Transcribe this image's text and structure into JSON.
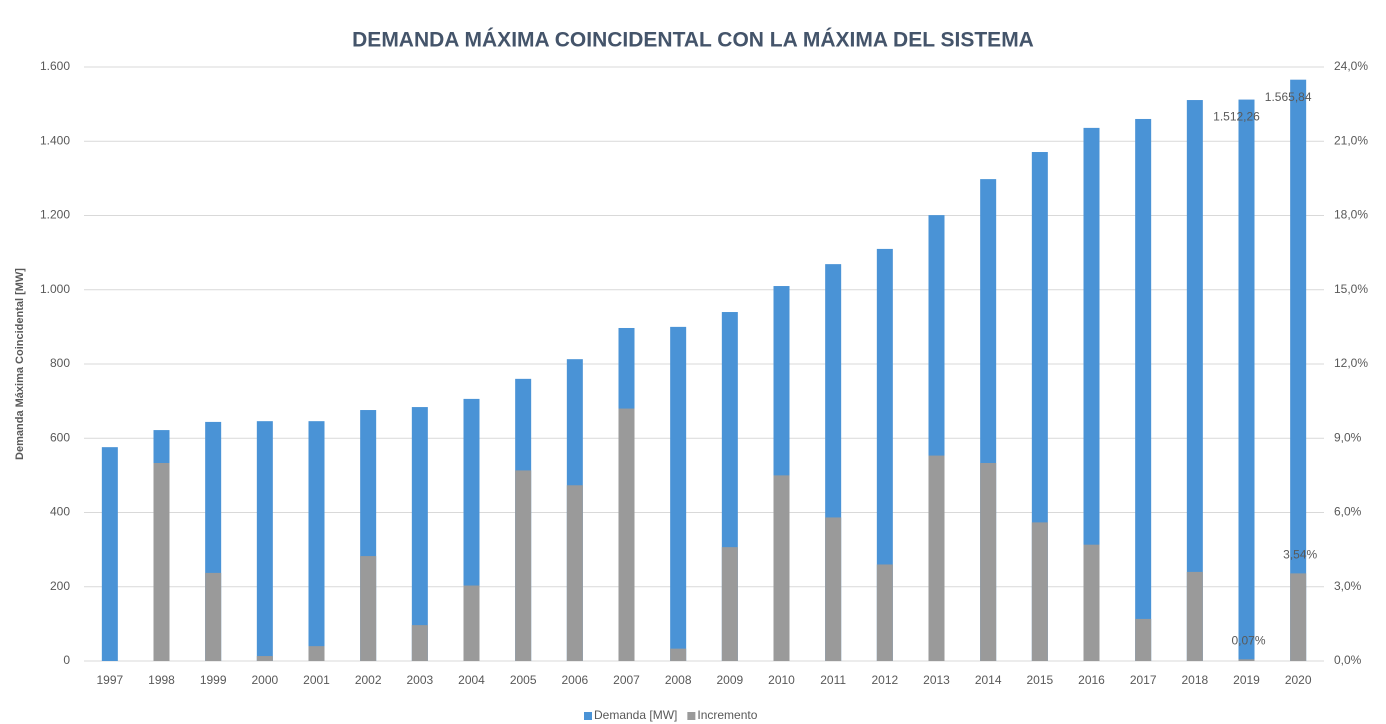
{
  "chart_data": {
    "type": "bar",
    "title": "DEMANDA MÁXIMA COINCIDENTAL CON LA MÁXIMA DEL SISTEMA",
    "y_label": "Demanda Máxima Coincidental [MW]",
    "categories": [
      "1997",
      "1998",
      "1999",
      "2000",
      "2001",
      "2002",
      "2003",
      "2004",
      "2005",
      "2006",
      "2007",
      "2008",
      "2009",
      "2010",
      "2011",
      "2012",
      "2013",
      "2014",
      "2015",
      "2016",
      "2017",
      "2018",
      "2019",
      "2020"
    ],
    "series": [
      {
        "name": "Demanda [MW]",
        "color": "#4a93d6",
        "values": [
          576,
          622,
          644,
          646,
          646,
          676,
          684,
          706,
          760,
          813,
          897,
          900,
          940,
          1010,
          1069,
          1110,
          1201,
          1298,
          1371,
          1436,
          1460,
          1511,
          1512.26,
          1565.84
        ],
        "value_labels": [
          null,
          null,
          null,
          null,
          null,
          null,
          null,
          null,
          null,
          null,
          null,
          null,
          null,
          null,
          null,
          null,
          null,
          null,
          null,
          null,
          null,
          null,
          "1.512,26",
          "1.565,84"
        ]
      },
      {
        "name": "Incremento",
        "color": "#9a9a9a",
        "axis": "y2",
        "values": [
          0,
          8.0,
          3.56,
          0.2,
          0.6,
          4.24,
          1.45,
          3.05,
          7.7,
          7.1,
          10.2,
          0.5,
          4.6,
          7.5,
          5.8,
          3.9,
          8.3,
          8.0,
          5.6,
          4.7,
          1.7,
          3.6,
          0.07,
          3.54
        ],
        "value_labels": [
          null,
          null,
          null,
          null,
          null,
          null,
          null,
          null,
          null,
          null,
          null,
          null,
          null,
          null,
          null,
          null,
          null,
          null,
          null,
          null,
          null,
          null,
          "0,07%",
          "3,54%"
        ]
      }
    ],
    "ylim": [
      0,
      1600
    ],
    "yticks": [
      0,
      200,
      400,
      600,
      800,
      {
        "value": 1000,
        "label": "1.000"
      },
      {
        "value": 1200,
        "label": "1.200"
      },
      {
        "value": 1400,
        "label": "1.400"
      },
      {
        "value": 1600,
        "label": "1.600"
      }
    ],
    "y2lim": [
      0,
      24
    ],
    "y2ticks": [
      {
        "value": 0,
        "label": "0,0%"
      },
      {
        "value": 3,
        "label": "3,0%"
      },
      {
        "value": 6,
        "label": "6,0%"
      },
      {
        "value": 9,
        "label": "9,0%"
      },
      {
        "value": 12,
        "label": "12,0%"
      },
      {
        "value": 15,
        "label": "15,0%"
      },
      {
        "value": 18,
        "label": "18,0%"
      },
      {
        "value": 21,
        "label": "21,0%"
      },
      {
        "value": 24,
        "label": "24,0%"
      }
    ],
    "grid": true,
    "legend": "bottom"
  }
}
